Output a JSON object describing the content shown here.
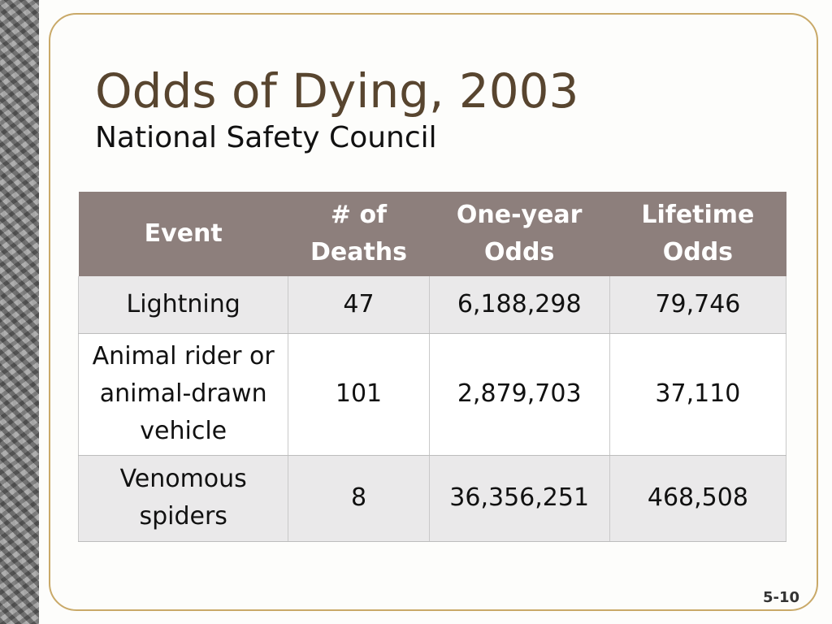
{
  "slide": {
    "title": "Odds of Dying, 2003",
    "subtitle": "National Safety Council",
    "page_number": "5-10"
  },
  "table": {
    "headers": [
      {
        "line1": "Event",
        "line2": ""
      },
      {
        "line1": "# of",
        "line2": "Deaths"
      },
      {
        "line1": "One-year",
        "line2": "Odds"
      },
      {
        "line1": "Lifetime",
        "line2": "Odds"
      }
    ],
    "rows": [
      {
        "event_lines": [
          "Lightning"
        ],
        "deaths": "47",
        "one_year_odds": "6,188,298",
        "lifetime_odds": "79,746"
      },
      {
        "event_lines": [
          "Animal rider or",
          "animal-drawn",
          "vehicle"
        ],
        "deaths": "101",
        "one_year_odds": "2,879,703",
        "lifetime_odds": "37,110"
      },
      {
        "event_lines": [
          "Venomous",
          "spiders"
        ],
        "deaths": "8",
        "one_year_odds": "36,356,251",
        "lifetime_odds": "468,508"
      }
    ]
  },
  "colors": {
    "title": "#58452f",
    "header_bg": "#8d7f7c",
    "frame_border": "#c9a968",
    "row_shaded": "#eae9ea"
  }
}
